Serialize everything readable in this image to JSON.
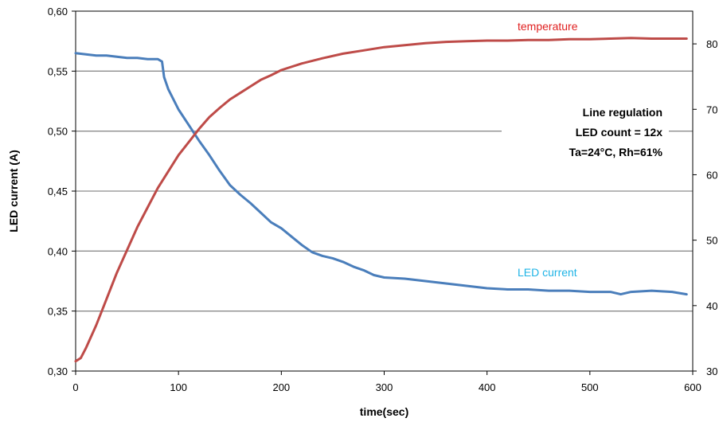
{
  "chart_data": {
    "type": "line",
    "title": "",
    "xlabel": "time(sec)",
    "ylabel": "LED current (A)",
    "xlim": [
      0,
      600
    ],
    "ylim": [
      0.3,
      0.6
    ],
    "y2lim": [
      30,
      85
    ],
    "x_ticks": [
      "0",
      "100",
      "200",
      "300",
      "400",
      "500",
      "600"
    ],
    "y_ticks": [
      "0,30",
      "0,35",
      "0,40",
      "0,45",
      "0,50",
      "0,55",
      "0,60"
    ],
    "y2_ticks": [
      "30",
      "40",
      "50",
      "60",
      "70",
      "80"
    ],
    "grid": "horizontal",
    "annotation": [
      "Line regulation",
      "LED count = 12x",
      "Ta=24°C, Rh=61%"
    ],
    "colors": {
      "led_current": "#4a7ebb",
      "temperature": "#be4b48",
      "led_label": "#1fb4e6",
      "temp_label": "#e02020",
      "grid": "#8c8c8c"
    },
    "series": [
      {
        "name": "LED current",
        "axis": "left",
        "x": [
          0,
          10,
          20,
          30,
          40,
          50,
          60,
          70,
          80,
          84,
          86,
          90,
          100,
          110,
          120,
          130,
          140,
          150,
          160,
          170,
          180,
          190,
          200,
          210,
          220,
          230,
          240,
          250,
          260,
          270,
          280,
          290,
          300,
          320,
          340,
          360,
          380,
          400,
          420,
          440,
          460,
          480,
          500,
          520,
          530,
          540,
          560,
          580,
          594
        ],
        "y": [
          0.565,
          0.564,
          0.563,
          0.563,
          0.562,
          0.561,
          0.561,
          0.56,
          0.56,
          0.558,
          0.545,
          0.535,
          0.518,
          0.505,
          0.492,
          0.48,
          0.467,
          0.455,
          0.447,
          0.44,
          0.432,
          0.424,
          0.419,
          0.412,
          0.405,
          0.399,
          0.396,
          0.394,
          0.391,
          0.387,
          0.384,
          0.38,
          0.378,
          0.377,
          0.375,
          0.373,
          0.371,
          0.369,
          0.368,
          0.368,
          0.367,
          0.367,
          0.366,
          0.366,
          0.364,
          0.366,
          0.367,
          0.366,
          0.364
        ]
      },
      {
        "name": "temperature",
        "axis": "right",
        "x": [
          0,
          5,
          10,
          20,
          30,
          40,
          50,
          60,
          70,
          80,
          90,
          100,
          110,
          120,
          130,
          140,
          150,
          160,
          170,
          180,
          190,
          200,
          220,
          240,
          260,
          280,
          300,
          320,
          340,
          360,
          380,
          400,
          420,
          440,
          460,
          480,
          500,
          520,
          540,
          560,
          580,
          594
        ],
        "y": [
          31.5,
          32,
          33.5,
          37,
          41,
          45,
          48.5,
          52,
          55,
          58,
          60.5,
          63,
          65,
          67,
          68.8,
          70.2,
          71.5,
          72.5,
          73.5,
          74.5,
          75.2,
          76,
          77,
          77.8,
          78.5,
          79,
          79.5,
          79.8,
          80.1,
          80.3,
          80.4,
          80.5,
          80.5,
          80.6,
          80.6,
          80.7,
          80.7,
          80.8,
          80.9,
          80.8,
          80.8,
          80.8
        ]
      }
    ]
  }
}
